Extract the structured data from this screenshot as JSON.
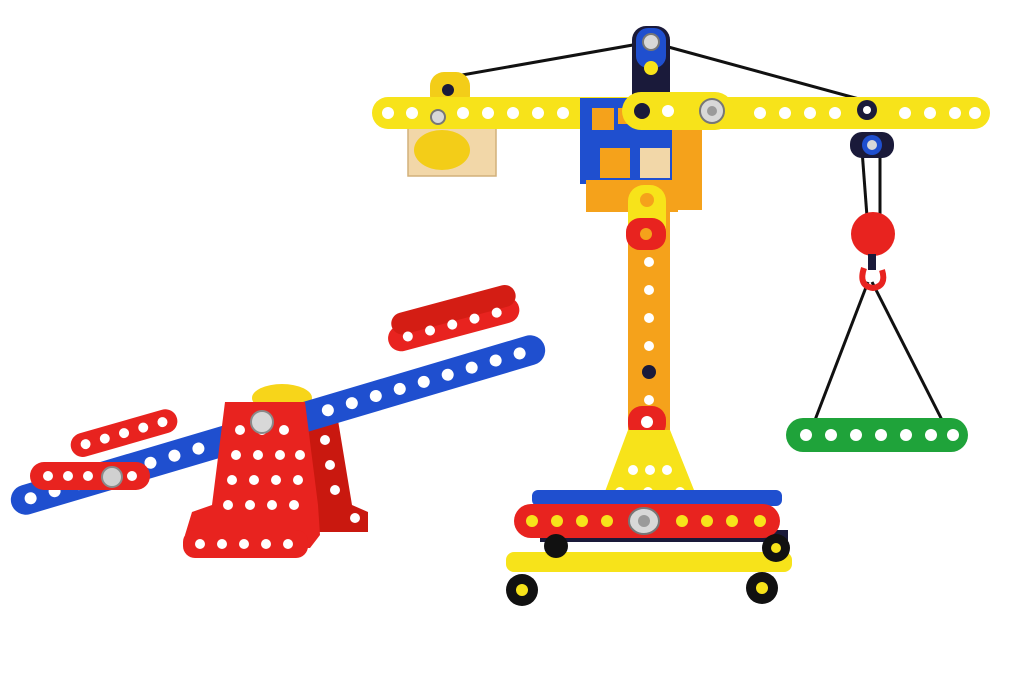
{
  "photo": {
    "subject": "toy-construction-set",
    "background_color": "#ffffff",
    "colors": {
      "red": "#e8231f",
      "blue": "#1f4fcf",
      "yellow": "#f7e31a",
      "orange": "#f5a21b",
      "green": "#1fa33a",
      "dark_navy": "#1a1a3a",
      "wood": "#f2d7a8",
      "bolt": "#c9c9c9",
      "string": "#111111"
    }
  }
}
